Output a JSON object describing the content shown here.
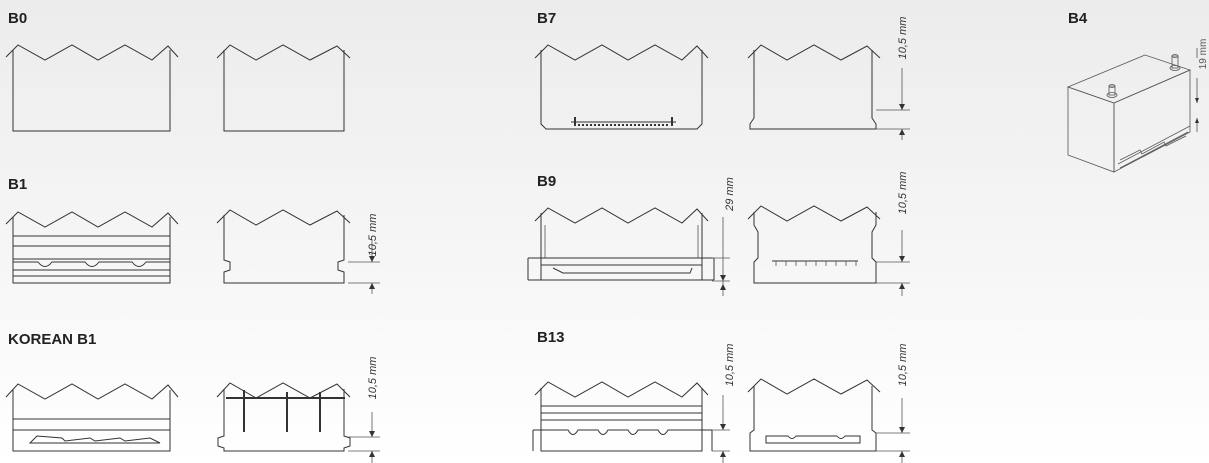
{
  "labels": {
    "b0": "B0",
    "b1": "B1",
    "korean_b1": "KOREAN B1",
    "b7": "B7",
    "b9": "B9",
    "b13": "B13",
    "b4": "B4"
  },
  "dimensions": {
    "ten_five": "10,5 mm",
    "twenty_nine": "29 mm",
    "nineteen": "19 mm"
  }
}
